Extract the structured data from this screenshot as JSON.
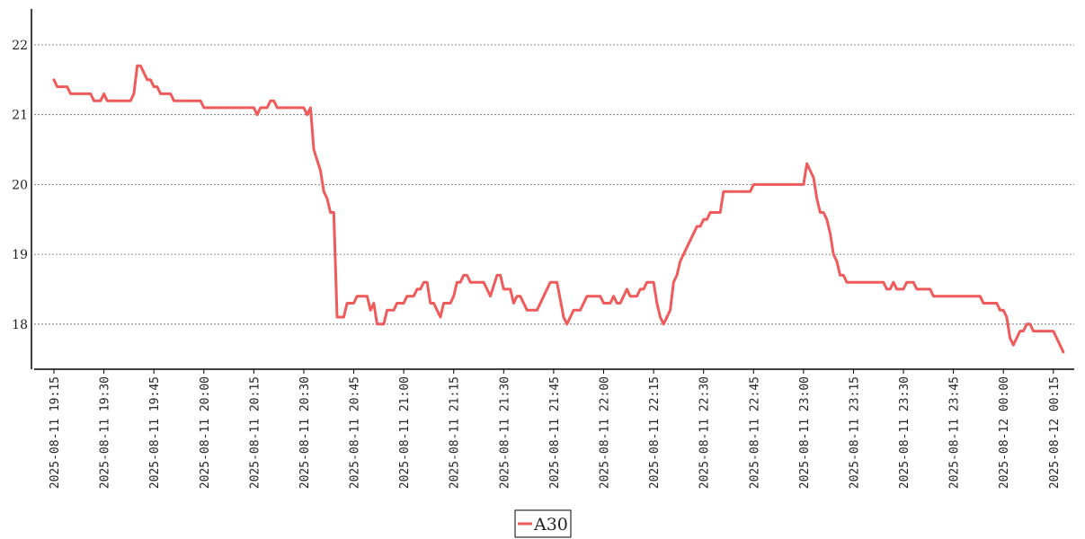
{
  "chart_data": {
    "type": "line",
    "title": "",
    "xlabel": "",
    "ylabel": "",
    "ylim": [
      17.4,
      22.5
    ],
    "yticks": [
      18,
      19,
      20,
      21,
      22
    ],
    "grid": "horizontal dotted",
    "legend_position": "bottom-center",
    "x_start": "2025-08-11 19:15",
    "x_end": "2025-08-12 00:15",
    "xticks": [
      "2025-08-11 19:15",
      "2025-08-11 19:30",
      "2025-08-11 19:45",
      "2025-08-11 20:00",
      "2025-08-11 20:15",
      "2025-08-11 20:30",
      "2025-08-11 20:45",
      "2025-08-11 21:00",
      "2025-08-11 21:15",
      "2025-08-11 21:30",
      "2025-08-11 21:45",
      "2025-08-11 22:00",
      "2025-08-11 22:15",
      "2025-08-11 22:30",
      "2025-08-11 22:45",
      "2025-08-11 23:00",
      "2025-08-11 23:15",
      "2025-08-11 23:30",
      "2025-08-11 23:45",
      "2025-08-12 00:00",
      "2025-08-12 00:15"
    ],
    "series": [
      {
        "name": "A30",
        "color": "#ef5a5a",
        "points": [
          [
            "2025-08-11 19:15",
            21.5
          ],
          [
            "2025-08-11 19:16",
            21.4
          ],
          [
            "2025-08-11 19:19",
            21.4
          ],
          [
            "2025-08-11 19:20",
            21.3
          ],
          [
            "2025-08-11 19:26",
            21.3
          ],
          [
            "2025-08-11 19:27",
            21.2
          ],
          [
            "2025-08-11 19:29",
            21.2
          ],
          [
            "2025-08-11 19:30",
            21.3
          ],
          [
            "2025-08-11 19:31",
            21.2
          ],
          [
            "2025-08-11 19:38",
            21.2
          ],
          [
            "2025-08-11 19:39",
            21.3
          ],
          [
            "2025-08-11 19:40",
            21.7
          ],
          [
            "2025-08-11 19:41",
            21.7
          ],
          [
            "2025-08-11 19:43",
            21.5
          ],
          [
            "2025-08-11 19:44",
            21.5
          ],
          [
            "2025-08-11 19:45",
            21.4
          ],
          [
            "2025-08-11 19:46",
            21.4
          ],
          [
            "2025-08-11 19:47",
            21.3
          ],
          [
            "2025-08-11 19:50",
            21.3
          ],
          [
            "2025-08-11 19:51",
            21.2
          ],
          [
            "2025-08-11 19:59",
            21.2
          ],
          [
            "2025-08-11 20:00",
            21.1
          ],
          [
            "2025-08-11 20:15",
            21.1
          ],
          [
            "2025-08-11 20:16",
            21.0
          ],
          [
            "2025-08-11 20:17",
            21.1
          ],
          [
            "2025-08-11 20:19",
            21.1
          ],
          [
            "2025-08-11 20:20",
            21.2
          ],
          [
            "2025-08-11 20:21",
            21.2
          ],
          [
            "2025-08-11 20:22",
            21.1
          ],
          [
            "2025-08-11 20:30",
            21.1
          ],
          [
            "2025-08-11 20:31",
            21.0
          ],
          [
            "2025-08-11 20:32",
            21.1
          ],
          [
            "2025-08-11 20:33",
            20.5
          ],
          [
            "2025-08-11 20:35",
            20.2
          ],
          [
            "2025-08-11 20:36",
            19.9
          ],
          [
            "2025-08-11 20:37",
            19.8
          ],
          [
            "2025-08-11 20:38",
            19.6
          ],
          [
            "2025-08-11 20:39",
            19.6
          ],
          [
            "2025-08-11 20:40",
            18.1
          ],
          [
            "2025-08-11 20:42",
            18.1
          ],
          [
            "2025-08-11 20:43",
            18.3
          ],
          [
            "2025-08-11 20:45",
            18.3
          ],
          [
            "2025-08-11 20:46",
            18.4
          ],
          [
            "2025-08-11 20:49",
            18.4
          ],
          [
            "2025-08-11 20:50",
            18.2
          ],
          [
            "2025-08-11 20:51",
            18.3
          ],
          [
            "2025-08-11 20:52",
            18.0
          ],
          [
            "2025-08-11 20:54",
            18.0
          ],
          [
            "2025-08-11 20:55",
            18.2
          ],
          [
            "2025-08-11 20:57",
            18.2
          ],
          [
            "2025-08-11 20:58",
            18.3
          ],
          [
            "2025-08-11 21:00",
            18.3
          ],
          [
            "2025-08-11 21:01",
            18.4
          ],
          [
            "2025-08-11 21:03",
            18.4
          ],
          [
            "2025-08-11 21:04",
            18.5
          ],
          [
            "2025-08-11 21:05",
            18.5
          ],
          [
            "2025-08-11 21:06",
            18.6
          ],
          [
            "2025-08-11 21:07",
            18.6
          ],
          [
            "2025-08-11 21:08",
            18.3
          ],
          [
            "2025-08-11 21:09",
            18.3
          ],
          [
            "2025-08-11 21:11",
            18.1
          ],
          [
            "2025-08-11 21:12",
            18.3
          ],
          [
            "2025-08-11 21:14",
            18.3
          ],
          [
            "2025-08-11 21:15",
            18.4
          ],
          [
            "2025-08-11 21:16",
            18.6
          ],
          [
            "2025-08-11 21:17",
            18.6
          ],
          [
            "2025-08-11 21:18",
            18.7
          ],
          [
            "2025-08-11 21:19",
            18.7
          ],
          [
            "2025-08-11 21:20",
            18.6
          ],
          [
            "2025-08-11 21:24",
            18.6
          ],
          [
            "2025-08-11 21:26",
            18.4
          ],
          [
            "2025-08-11 21:28",
            18.7
          ],
          [
            "2025-08-11 21:29",
            18.7
          ],
          [
            "2025-08-11 21:30",
            18.5
          ],
          [
            "2025-08-11 21:32",
            18.5
          ],
          [
            "2025-08-11 21:33",
            18.3
          ],
          [
            "2025-08-11 21:34",
            18.4
          ],
          [
            "2025-08-11 21:35",
            18.4
          ],
          [
            "2025-08-11 21:37",
            18.2
          ],
          [
            "2025-08-11 21:40",
            18.2
          ],
          [
            "2025-08-11 21:42",
            18.4
          ],
          [
            "2025-08-11 21:44",
            18.6
          ],
          [
            "2025-08-11 21:46",
            18.6
          ],
          [
            "2025-08-11 21:48",
            18.1
          ],
          [
            "2025-08-11 21:49",
            18.0
          ],
          [
            "2025-08-11 21:51",
            18.2
          ],
          [
            "2025-08-11 21:53",
            18.2
          ],
          [
            "2025-08-11 21:55",
            18.4
          ],
          [
            "2025-08-11 21:59",
            18.4
          ],
          [
            "2025-08-11 22:00",
            18.3
          ],
          [
            "2025-08-11 22:02",
            18.3
          ],
          [
            "2025-08-11 22:03",
            18.4
          ],
          [
            "2025-08-11 22:04",
            18.3
          ],
          [
            "2025-08-11 22:05",
            18.3
          ],
          [
            "2025-08-11 22:07",
            18.5
          ],
          [
            "2025-08-11 22:08",
            18.4
          ],
          [
            "2025-08-11 22:10",
            18.4
          ],
          [
            "2025-08-11 22:11",
            18.5
          ],
          [
            "2025-08-11 22:12",
            18.5
          ],
          [
            "2025-08-11 22:13",
            18.6
          ],
          [
            "2025-08-11 22:15",
            18.6
          ],
          [
            "2025-08-11 22:16",
            18.3
          ],
          [
            "2025-08-11 22:17",
            18.1
          ],
          [
            "2025-08-11 22:18",
            18.0
          ],
          [
            "2025-08-11 22:20",
            18.2
          ],
          [
            "2025-08-11 22:21",
            18.6
          ],
          [
            "2025-08-11 22:22",
            18.7
          ],
          [
            "2025-08-11 22:23",
            18.9
          ],
          [
            "2025-08-11 22:25",
            19.1
          ],
          [
            "2025-08-11 22:27",
            19.3
          ],
          [
            "2025-08-11 22:28",
            19.4
          ],
          [
            "2025-08-11 22:29",
            19.4
          ],
          [
            "2025-08-11 22:30",
            19.5
          ],
          [
            "2025-08-11 22:31",
            19.5
          ],
          [
            "2025-08-11 22:32",
            19.6
          ],
          [
            "2025-08-11 22:35",
            19.6
          ],
          [
            "2025-08-11 22:36",
            19.9
          ],
          [
            "2025-08-11 22:44",
            19.9
          ],
          [
            "2025-08-11 22:45",
            20.0
          ],
          [
            "2025-08-11 23:00",
            20.0
          ],
          [
            "2025-08-11 23:01",
            20.3
          ],
          [
            "2025-08-11 23:03",
            20.1
          ],
          [
            "2025-08-11 23:04",
            19.8
          ],
          [
            "2025-08-11 23:05",
            19.6
          ],
          [
            "2025-08-11 23:06",
            19.6
          ],
          [
            "2025-08-11 23:07",
            19.5
          ],
          [
            "2025-08-11 23:08",
            19.3
          ],
          [
            "2025-08-11 23:09",
            19.0
          ],
          [
            "2025-08-11 23:10",
            18.9
          ],
          [
            "2025-08-11 23:11",
            18.7
          ],
          [
            "2025-08-11 23:12",
            18.7
          ],
          [
            "2025-08-11 23:13",
            18.6
          ],
          [
            "2025-08-11 23:24",
            18.6
          ],
          [
            "2025-08-11 23:25",
            18.5
          ],
          [
            "2025-08-11 23:26",
            18.5
          ],
          [
            "2025-08-11 23:27",
            18.6
          ],
          [
            "2025-08-11 23:28",
            18.5
          ],
          [
            "2025-08-11 23:30",
            18.5
          ],
          [
            "2025-08-11 23:31",
            18.6
          ],
          [
            "2025-08-11 23:33",
            18.6
          ],
          [
            "2025-08-11 23:34",
            18.5
          ],
          [
            "2025-08-11 23:38",
            18.5
          ],
          [
            "2025-08-11 23:39",
            18.4
          ],
          [
            "2025-08-11 23:53",
            18.4
          ],
          [
            "2025-08-11 23:54",
            18.3
          ],
          [
            "2025-08-11 23:58",
            18.3
          ],
          [
            "2025-08-11 23:59",
            18.2
          ],
          [
            "2025-08-12 00:00",
            18.2
          ],
          [
            "2025-08-12 00:01",
            18.1
          ],
          [
            "2025-08-12 00:02",
            17.8
          ],
          [
            "2025-08-12 00:03",
            17.7
          ],
          [
            "2025-08-12 00:05",
            17.9
          ],
          [
            "2025-08-12 00:06",
            17.9
          ],
          [
            "2025-08-12 00:07",
            18.0
          ],
          [
            "2025-08-12 00:08",
            18.0
          ],
          [
            "2025-08-12 00:09",
            17.9
          ],
          [
            "2025-08-12 00:15",
            17.9
          ],
          [
            "2025-08-12 00:17",
            17.7
          ],
          [
            "2025-08-12 00:18",
            17.6
          ]
        ]
      }
    ]
  }
}
